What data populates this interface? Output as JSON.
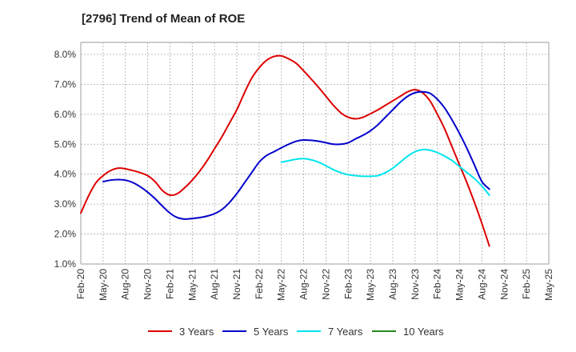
{
  "chart_data": {
    "type": "line",
    "title": "[2796]  Trend of Mean of ROE",
    "xlabel": "",
    "ylabel": "",
    "x_ticks": [
      "Feb-20",
      "May-20",
      "Aug-20",
      "Nov-20",
      "Feb-21",
      "May-21",
      "Aug-21",
      "Nov-21",
      "Feb-22",
      "May-22",
      "Aug-22",
      "Nov-22",
      "Feb-23",
      "May-23",
      "Aug-23",
      "Nov-23",
      "Feb-24",
      "May-24",
      "Aug-24",
      "Nov-24",
      "Feb-25",
      "May-25"
    ],
    "y_ticks": [
      "1.0%",
      "2.0%",
      "3.0%",
      "4.0%",
      "5.0%",
      "6.0%",
      "7.0%",
      "8.0%"
    ],
    "ylim": [
      1.0,
      8.4
    ],
    "grid": true,
    "legend_position": "bottom",
    "series": [
      {
        "name": "3 Years",
        "color": "#dd0000",
        "points": [
          [
            "Feb-20",
            2.7
          ],
          [
            "Mar-20",
            3.25
          ],
          [
            "Apr-20",
            3.7
          ],
          [
            "May-20",
            3.95
          ],
          [
            "Jun-20",
            4.12
          ],
          [
            "Jul-20",
            4.2
          ],
          [
            "Aug-20",
            4.18
          ],
          [
            "Sep-20",
            4.12
          ],
          [
            "Oct-20",
            4.05
          ],
          [
            "Nov-20",
            3.95
          ],
          [
            "Dec-20",
            3.75
          ],
          [
            "Jan-21",
            3.45
          ],
          [
            "Feb-21",
            3.3
          ],
          [
            "Mar-21",
            3.35
          ],
          [
            "Apr-21",
            3.55
          ],
          [
            "May-21",
            3.8
          ],
          [
            "Jun-21",
            4.1
          ],
          [
            "Jul-21",
            4.45
          ],
          [
            "Aug-21",
            4.85
          ],
          [
            "Sep-21",
            5.25
          ],
          [
            "Oct-21",
            5.7
          ],
          [
            "Nov-21",
            6.15
          ],
          [
            "Dec-21",
            6.7
          ],
          [
            "Jan-22",
            7.2
          ],
          [
            "Feb-22",
            7.55
          ],
          [
            "Mar-22",
            7.8
          ],
          [
            "Apr-22",
            7.93
          ],
          [
            "May-22",
            7.95
          ],
          [
            "Jun-22",
            7.85
          ],
          [
            "Jul-22",
            7.7
          ],
          [
            "Aug-22",
            7.45
          ],
          [
            "Sep-22",
            7.18
          ],
          [
            "Oct-22",
            6.9
          ],
          [
            "Nov-22",
            6.6
          ],
          [
            "Dec-22",
            6.3
          ],
          [
            "Jan-23",
            6.05
          ],
          [
            "Feb-23",
            5.9
          ],
          [
            "Mar-23",
            5.85
          ],
          [
            "Apr-23",
            5.9
          ],
          [
            "May-23",
            6.02
          ],
          [
            "Jun-23",
            6.15
          ],
          [
            "Jul-23",
            6.3
          ],
          [
            "Aug-23",
            6.45
          ],
          [
            "Sep-23",
            6.6
          ],
          [
            "Oct-23",
            6.75
          ],
          [
            "Nov-23",
            6.82
          ],
          [
            "Dec-23",
            6.72
          ],
          [
            "Jan-24",
            6.45
          ],
          [
            "Feb-24",
            6.0
          ],
          [
            "Mar-24",
            5.5
          ],
          [
            "Apr-24",
            4.9
          ],
          [
            "May-24",
            4.3
          ],
          [
            "Jun-24",
            3.7
          ],
          [
            "Jul-24",
            3.05
          ],
          [
            "Aug-24",
            2.35
          ],
          [
            "Sep-24",
            1.6
          ]
        ]
      },
      {
        "name": "5 Years",
        "color": "#0000cc",
        "points": [
          [
            "May-20",
            3.75
          ],
          [
            "Jun-20",
            3.8
          ],
          [
            "Jul-20",
            3.82
          ],
          [
            "Aug-20",
            3.8
          ],
          [
            "Sep-20",
            3.72
          ],
          [
            "Oct-20",
            3.58
          ],
          [
            "Nov-20",
            3.4
          ],
          [
            "Dec-20",
            3.18
          ],
          [
            "Jan-21",
            2.93
          ],
          [
            "Feb-21",
            2.7
          ],
          [
            "Mar-21",
            2.55
          ],
          [
            "Apr-21",
            2.5
          ],
          [
            "May-21",
            2.52
          ],
          [
            "Jun-21",
            2.55
          ],
          [
            "Jul-21",
            2.6
          ],
          [
            "Aug-21",
            2.68
          ],
          [
            "Sep-21",
            2.82
          ],
          [
            "Oct-21",
            3.05
          ],
          [
            "Nov-21",
            3.35
          ],
          [
            "Dec-21",
            3.7
          ],
          [
            "Jan-22",
            4.05
          ],
          [
            "Feb-22",
            4.4
          ],
          [
            "Mar-22",
            4.62
          ],
          [
            "Apr-22",
            4.75
          ],
          [
            "May-22",
            4.88
          ],
          [
            "Jun-22",
            5.0
          ],
          [
            "Jul-22",
            5.1
          ],
          [
            "Aug-22",
            5.14
          ],
          [
            "Sep-22",
            5.13
          ],
          [
            "Oct-22",
            5.1
          ],
          [
            "Nov-22",
            5.05
          ],
          [
            "Dec-22",
            5.0
          ],
          [
            "Jan-23",
            5.0
          ],
          [
            "Feb-23",
            5.05
          ],
          [
            "Mar-23",
            5.18
          ],
          [
            "Apr-23",
            5.3
          ],
          [
            "May-23",
            5.45
          ],
          [
            "Jun-23",
            5.65
          ],
          [
            "Jul-23",
            5.9
          ],
          [
            "Aug-23",
            6.15
          ],
          [
            "Sep-23",
            6.4
          ],
          [
            "Oct-23",
            6.6
          ],
          [
            "Nov-23",
            6.72
          ],
          [
            "Dec-23",
            6.75
          ],
          [
            "Jan-24",
            6.7
          ],
          [
            "Feb-24",
            6.5
          ],
          [
            "Mar-24",
            6.2
          ],
          [
            "Apr-24",
            5.8
          ],
          [
            "May-24",
            5.35
          ],
          [
            "Jun-24",
            4.85
          ],
          [
            "Jul-24",
            4.3
          ],
          [
            "Aug-24",
            3.75
          ],
          [
            "Sep-24",
            3.5
          ]
        ]
      },
      {
        "name": "7 Years",
        "color": "#00e5ee",
        "points": [
          [
            "May-22",
            4.4
          ],
          [
            "Jun-22",
            4.45
          ],
          [
            "Jul-22",
            4.5
          ],
          [
            "Aug-22",
            4.52
          ],
          [
            "Sep-22",
            4.48
          ],
          [
            "Oct-22",
            4.4
          ],
          [
            "Nov-22",
            4.28
          ],
          [
            "Dec-22",
            4.15
          ],
          [
            "Jan-23",
            4.05
          ],
          [
            "Feb-23",
            3.98
          ],
          [
            "Mar-23",
            3.95
          ],
          [
            "Apr-23",
            3.93
          ],
          [
            "May-23",
            3.93
          ],
          [
            "Jun-23",
            3.95
          ],
          [
            "Jul-23",
            4.05
          ],
          [
            "Aug-23",
            4.2
          ],
          [
            "Sep-23",
            4.4
          ],
          [
            "Oct-23",
            4.6
          ],
          [
            "Nov-23",
            4.75
          ],
          [
            "Dec-23",
            4.82
          ],
          [
            "Jan-24",
            4.8
          ],
          [
            "Feb-24",
            4.72
          ],
          [
            "Mar-24",
            4.6
          ],
          [
            "Apr-24",
            4.45
          ],
          [
            "May-24",
            4.25
          ],
          [
            "Jun-24",
            4.05
          ],
          [
            "Jul-24",
            3.85
          ],
          [
            "Aug-24",
            3.6
          ],
          [
            "Sep-24",
            3.3
          ]
        ]
      },
      {
        "name": "10 Years",
        "color": "#228822",
        "points": []
      }
    ]
  }
}
